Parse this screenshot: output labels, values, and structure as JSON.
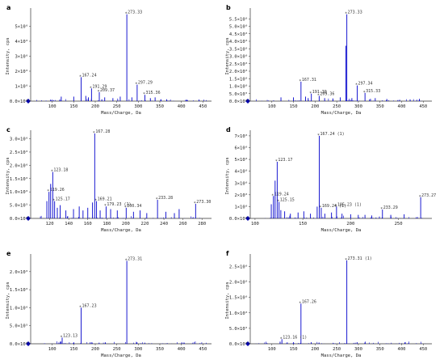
{
  "colors": {
    "peaks": "#0000cc",
    "axis": "#333333",
    "marker": "#0000aa"
  },
  "chart_data": [
    {
      "panel": "a",
      "type": "bar",
      "xlabel": "Mass/Charge, Da",
      "ylabel": "Intensity, cps",
      "xlim": [
        50,
        470
      ],
      "ylim": [
        0,
        6000000
      ],
      "xticks": [
        100,
        150,
        200,
        250,
        300,
        350,
        400,
        450
      ],
      "yticks": [
        0,
        1000000,
        2000000,
        3000000,
        4000000,
        5000000
      ],
      "ytick_labels": [
        "0.0×10⁰",
        "1×10⁶",
        "2×10⁶",
        "3×10⁶",
        "4×10⁶",
        "5×10⁶"
      ],
      "peaks": [
        {
          "x": 273.33,
          "y": 5800000,
          "label": "273.33"
        },
        {
          "x": 167.24,
          "y": 1600000,
          "label": "167.24"
        },
        {
          "x": 297.29,
          "y": 1100000,
          "label": "297.29"
        },
        {
          "x": 191.29,
          "y": 850000,
          "label": "191.29"
        },
        {
          "x": 209.37,
          "y": 600000,
          "label": "209.37"
        },
        {
          "x": 315.36,
          "y": 420000,
          "label": "315.36"
        },
        {
          "x": 121,
          "y": 300000
        },
        {
          "x": 150,
          "y": 300000
        },
        {
          "x": 178,
          "y": 350000
        },
        {
          "x": 184,
          "y": 250000
        },
        {
          "x": 222,
          "y": 250000
        },
        {
          "x": 241,
          "y": 200000
        },
        {
          "x": 258,
          "y": 300000
        },
        {
          "x": 285,
          "y": 250000
        },
        {
          "x": 328,
          "y": 200000
        },
        {
          "x": 339,
          "y": 250000
        },
        {
          "x": 366,
          "y": 120000
        },
        {
          "x": 410,
          "y": 80000
        },
        {
          "x": 441,
          "y": 100000
        }
      ]
    },
    {
      "panel": "b",
      "type": "bar",
      "xlabel": "Mass/Charge, Da",
      "ylabel": "Intensity, cps",
      "xlim": [
        50,
        470
      ],
      "ylim": [
        0,
        6000000
      ],
      "xticks": [
        100,
        150,
        200,
        250,
        300,
        350,
        400,
        450
      ],
      "yticks": [
        0,
        500000,
        1000000,
        1500000,
        2000000,
        2500000,
        3000000,
        3500000,
        4000000,
        4500000,
        5000000,
        5500000
      ],
      "ytick_labels": [
        "0.0×10⁰",
        "5.0×10⁵",
        "1.0×10⁶",
        "1.5×10⁶",
        "2.0×10⁶",
        "2.5×10⁶",
        "3.0×10⁶",
        "3.5×10⁶",
        "4.0×10⁶",
        "4.5×10⁶",
        "5.0×10⁶",
        "5.5×10⁶"
      ],
      "peaks": [
        {
          "x": 273.33,
          "y": 5800000,
          "label": "273.33"
        },
        {
          "x": 167.31,
          "y": 1300000,
          "label": "167.31"
        },
        {
          "x": 297.34,
          "y": 1050000,
          "label": "297.34"
        },
        {
          "x": 191.3,
          "y": 500000,
          "label": "191.30"
        },
        {
          "x": 209.36,
          "y": 350000,
          "label": "209.36"
        },
        {
          "x": 315.33,
          "y": 550000,
          "label": "315.33"
        },
        {
          "x": 271,
          "y": 3700000
        },
        {
          "x": 121,
          "y": 250000
        },
        {
          "x": 150,
          "y": 250000
        },
        {
          "x": 178,
          "y": 300000
        },
        {
          "x": 184,
          "y": 200000
        },
        {
          "x": 222,
          "y": 200000
        },
        {
          "x": 241,
          "y": 180000
        },
        {
          "x": 258,
          "y": 250000
        },
        {
          "x": 285,
          "y": 200000
        },
        {
          "x": 328,
          "y": 150000
        },
        {
          "x": 339,
          "y": 200000
        },
        {
          "x": 366,
          "y": 100000
        },
        {
          "x": 441,
          "y": 150000
        }
      ]
    },
    {
      "panel": "c",
      "type": "bar",
      "xlabel": "Mass/Charge, Da",
      "ylabel": "Intensity, cps",
      "xlim": [
        100,
        290
      ],
      "ylim": [
        0,
        3200000
      ],
      "xticks": [
        120,
        140,
        160,
        180,
        200,
        220,
        240,
        260,
        280
      ],
      "yticks": [
        0,
        500000,
        1000000,
        1500000,
        2000000,
        2500000,
        3000000
      ],
      "ytick_labels": [
        "0.0×10⁰",
        "5.0×10⁵",
        "1.0×10⁶",
        "1.5×10⁶",
        "2.0×10⁶",
        "2.5×10⁶",
        "3.0×10⁶"
      ],
      "peaks": [
        {
          "x": 167.28,
          "y": 3200000,
          "label": "167.28"
        },
        {
          "x": 123.18,
          "y": 1750000,
          "label": "123.18"
        },
        {
          "x": 119.26,
          "y": 1000000,
          "label": "119.26"
        },
        {
          "x": 125.17,
          "y": 650000,
          "label": "125.17"
        },
        {
          "x": 169.21,
          "y": 650000,
          "label": "169.21"
        },
        {
          "x": 179.23,
          "y": 450000,
          "label": "179.23 (1)"
        },
        {
          "x": 200.34,
          "y": 400000,
          "label": "200.34"
        },
        {
          "x": 233.28,
          "y": 700000,
          "label": "233.28"
        },
        {
          "x": 273.3,
          "y": 550000,
          "label": "273.30"
        },
        {
          "x": 121,
          "y": 1300000
        },
        {
          "x": 117,
          "y": 650000
        },
        {
          "x": 128,
          "y": 400000
        },
        {
          "x": 131,
          "y": 500000
        },
        {
          "x": 137,
          "y": 300000
        },
        {
          "x": 145,
          "y": 350000
        },
        {
          "x": 151,
          "y": 450000
        },
        {
          "x": 155,
          "y": 300000
        },
        {
          "x": 160,
          "y": 400000
        },
        {
          "x": 165,
          "y": 600000
        },
        {
          "x": 173,
          "y": 300000
        },
        {
          "x": 184,
          "y": 350000
        },
        {
          "x": 191,
          "y": 300000
        },
        {
          "x": 208,
          "y": 250000
        },
        {
          "x": 215,
          "y": 300000
        },
        {
          "x": 222,
          "y": 200000
        },
        {
          "x": 242,
          "y": 250000
        },
        {
          "x": 251,
          "y": 200000
        },
        {
          "x": 256,
          "y": 350000
        }
      ]
    },
    {
      "panel": "d",
      "type": "bar",
      "xlabel": "Mass/Charge, Da",
      "ylabel": "Intensity, cps",
      "xlim": [
        95,
        285
      ],
      "ylim": [
        0,
        7200000
      ],
      "xticks": [
        100,
        150,
        200,
        250
      ],
      "yticks": [
        0,
        1000000,
        2000000,
        3000000,
        4000000,
        5000000,
        6000000,
        7000000
      ],
      "ytick_labels": [
        "0.0×10⁰",
        "1×10⁶",
        "2×10⁶",
        "3×10⁶",
        "4×10⁶",
        "5×10⁶",
        "6×10⁶",
        "7×10⁶"
      ],
      "peaks": [
        {
          "x": 167.24,
          "y": 7000000,
          "label": "167.24 (1)"
        },
        {
          "x": 123.17,
          "y": 4800000,
          "label": "123.17"
        },
        {
          "x": 119.24,
          "y": 1900000,
          "label": "119.24"
        },
        {
          "x": 125.15,
          "y": 1400000,
          "label": "125.15"
        },
        {
          "x": 169.24,
          "y": 900000,
          "label": "169.24 (1)"
        },
        {
          "x": 185.23,
          "y": 1000000,
          "label": "185.23 (1)"
        },
        {
          "x": 233.29,
          "y": 750000,
          "label": "233.29"
        },
        {
          "x": 273.27,
          "y": 1800000,
          "label": "273.27"
        },
        {
          "x": 121,
          "y": 3200000
        },
        {
          "x": 117,
          "y": 1200000
        },
        {
          "x": 127,
          "y": 700000
        },
        {
          "x": 131,
          "y": 600000
        },
        {
          "x": 137,
          "y": 400000
        },
        {
          "x": 145,
          "y": 500000
        },
        {
          "x": 151,
          "y": 600000
        },
        {
          "x": 158,
          "y": 400000
        },
        {
          "x": 165,
          "y": 1000000
        },
        {
          "x": 173,
          "y": 400000
        },
        {
          "x": 180,
          "y": 500000
        },
        {
          "x": 191,
          "y": 400000
        },
        {
          "x": 200,
          "y": 350000
        },
        {
          "x": 208,
          "y": 300000
        },
        {
          "x": 215,
          "y": 300000
        },
        {
          "x": 222,
          "y": 250000
        },
        {
          "x": 242,
          "y": 300000
        },
        {
          "x": 256,
          "y": 350000
        }
      ]
    },
    {
      "panel": "e",
      "type": "bar",
      "xlabel": "Mass/Charge, Da",
      "ylabel": "Intensity, cps",
      "xlim": [
        50,
        470
      ],
      "ylim": [
        0,
        2400000
      ],
      "xticks": [
        100,
        150,
        200,
        250,
        300,
        350,
        400,
        450
      ],
      "yticks": [
        0,
        500000,
        1000000,
        1500000,
        2000000
      ],
      "ytick_labels": [
        "0.0×10⁰",
        "5.0×10⁵",
        "1.0×10⁶",
        "1.5×10⁶",
        "2.0×10⁶"
      ],
      "peaks": [
        {
          "x": 273.31,
          "y": 2300000,
          "label": "273.31"
        },
        {
          "x": 167.23,
          "y": 1000000,
          "label": "167.23"
        },
        {
          "x": 123.13,
          "y": 170000,
          "label": "123.13"
        },
        {
          "x": 119,
          "y": 60000
        },
        {
          "x": 150,
          "y": 40000
        },
        {
          "x": 191,
          "y": 40000
        },
        {
          "x": 209,
          "y": 30000
        },
        {
          "x": 297,
          "y": 40000
        },
        {
          "x": 315,
          "y": 30000
        }
      ]
    },
    {
      "panel": "f",
      "type": "bar",
      "xlabel": "Mass/Charge, Da",
      "ylabel": "Intensity, cps",
      "xlim": [
        50,
        470
      ],
      "ylim": [
        0,
        2800000
      ],
      "xticks": [
        100,
        150,
        200,
        250,
        300,
        350,
        400,
        450
      ],
      "yticks": [
        0,
        500000,
        1000000,
        1500000,
        2000000,
        2500000
      ],
      "ytick_labels": [
        "0.0×10⁰",
        "5.0×10⁵",
        "1.0×10⁶",
        "1.5×10⁶",
        "2.0×10⁶",
        "2.5×10⁶"
      ],
      "peaks": [
        {
          "x": 273.31,
          "y": 2700000,
          "label": "273.31 (1)"
        },
        {
          "x": 167.26,
          "y": 1300000,
          "label": "167.26"
        },
        {
          "x": 123.16,
          "y": 150000,
          "label": "123.16 (1)"
        },
        {
          "x": 119,
          "y": 70000
        },
        {
          "x": 150,
          "y": 50000
        },
        {
          "x": 191,
          "y": 50000
        },
        {
          "x": 209,
          "y": 40000
        },
        {
          "x": 297,
          "y": 50000
        },
        {
          "x": 315,
          "y": 40000
        }
      ]
    }
  ]
}
